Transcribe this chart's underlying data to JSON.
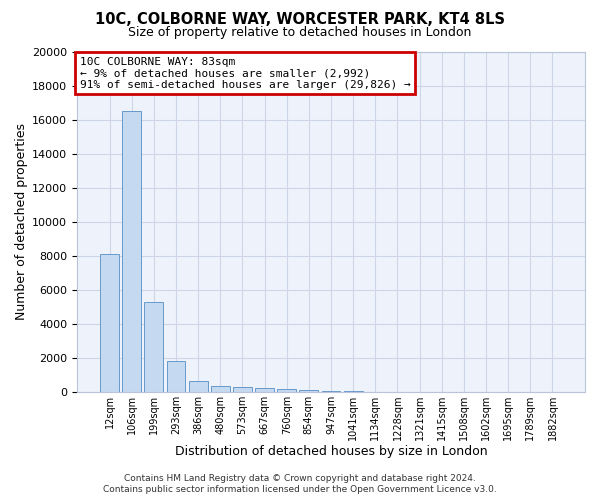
{
  "title1": "10C, COLBORNE WAY, WORCESTER PARK, KT4 8LS",
  "title2": "Size of property relative to detached houses in London",
  "xlabel": "Distribution of detached houses by size in London",
  "ylabel": "Number of detached properties",
  "categories": [
    "12sqm",
    "106sqm",
    "199sqm",
    "293sqm",
    "386sqm",
    "480sqm",
    "573sqm",
    "667sqm",
    "760sqm",
    "854sqm",
    "947sqm",
    "1041sqm",
    "1134sqm",
    "1228sqm",
    "1321sqm",
    "1415sqm",
    "1508sqm",
    "1602sqm",
    "1695sqm",
    "1789sqm",
    "1882sqm"
  ],
  "values": [
    8100,
    16500,
    5300,
    1850,
    650,
    370,
    270,
    210,
    175,
    115,
    55,
    38,
    28,
    18,
    12,
    8,
    6,
    5,
    4,
    3,
    2
  ],
  "bar_color": "#c5d9f0",
  "bar_edge_color": "#6699cc",
  "ann_line1": "10C COLBORNE WAY: 83sqm",
  "ann_line2": "← 9% of detached houses are smaller (2,992)",
  "ann_line3": "91% of semi-detached houses are larger (29,826) →",
  "ann_box_fc": "#ffffff",
  "ann_box_ec": "#cc0000",
  "grid_color": "#cdd6e8",
  "bg_color": "#eef2fa",
  "ylim_max": 20000,
  "yticks": [
    0,
    2000,
    4000,
    6000,
    8000,
    10000,
    12000,
    14000,
    16000,
    18000,
    20000
  ],
  "footer1": "Contains HM Land Registry data © Crown copyright and database right 2024.",
  "footer2": "Contains public sector information licensed under the Open Government Licence v3.0."
}
